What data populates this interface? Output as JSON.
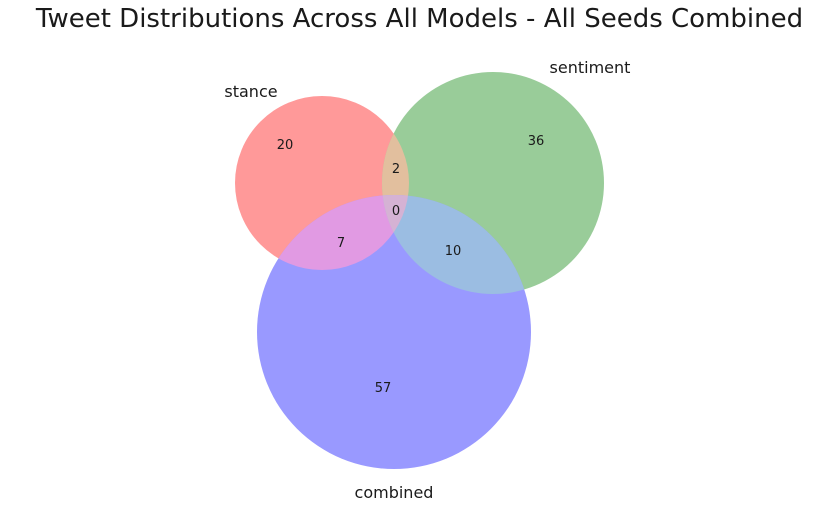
{
  "title": "Tweet Distributions Across All Models - All Seeds Combined",
  "sets": [
    {
      "name": "stance",
      "color": "#ff0000"
    },
    {
      "name": "sentiment",
      "color": "#008000"
    },
    {
      "name": "combined",
      "color": "#0000ff"
    }
  ],
  "regions": {
    "stance_only": "20",
    "sentiment_only": "36",
    "stance_sentiment": "2",
    "all_three": "0",
    "stance_combined": "7",
    "sentiment_combined": "10",
    "combined_only": "57"
  }
}
